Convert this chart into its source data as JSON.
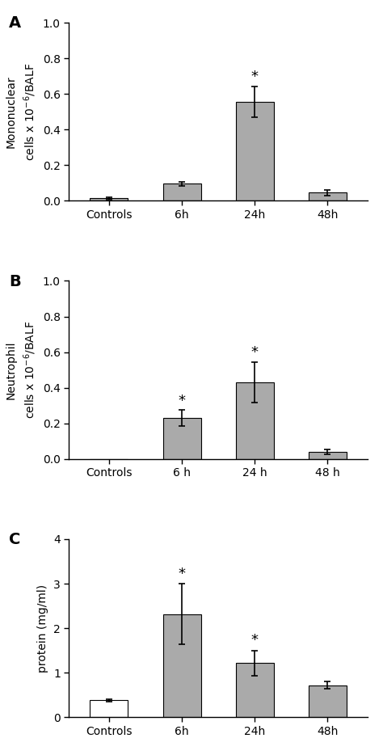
{
  "panels": [
    {
      "label": "A",
      "ylabel_line1": "Mononuclear",
      "ylabel_line2": "cells x 10$^{-6}$/BALF",
      "categories": [
        "Controls",
        "6h",
        "24h",
        "48h"
      ],
      "values": [
        0.013,
        0.095,
        0.555,
        0.045
      ],
      "errors": [
        0.005,
        0.012,
        0.085,
        0.015
      ],
      "bar_colors": [
        "#aaaaaa",
        "#aaaaaa",
        "#aaaaaa",
        "#aaaaaa"
      ],
      "bar_edgecolors": [
        "#000000",
        "#000000",
        "#000000",
        "#000000"
      ],
      "white_bars": [
        false,
        false,
        false,
        false
      ],
      "ylim": [
        0,
        1.0
      ],
      "yticks": [
        0.0,
        0.2,
        0.4,
        0.6,
        0.8,
        1.0
      ],
      "ytick_labels": [
        "0.0",
        "0.2",
        "0.4",
        "0.6",
        "0.8",
        "1.0"
      ],
      "significance": [
        false,
        false,
        true,
        false
      ],
      "sig_x": [
        null,
        null,
        2,
        null
      ],
      "sig_y": [
        null,
        null,
        0.655,
        null
      ]
    },
    {
      "label": "B",
      "ylabel_line1": "Neutrophil",
      "ylabel_line2": "cells x 10$^{-6}$/BALF",
      "categories": [
        "Controls",
        "6 h",
        "24 h",
        "48 h"
      ],
      "values": [
        0.0,
        0.23,
        0.43,
        0.04
      ],
      "errors": [
        0.0,
        0.045,
        0.115,
        0.012
      ],
      "bar_colors": [
        "#aaaaaa",
        "#aaaaaa",
        "#aaaaaa",
        "#aaaaaa"
      ],
      "bar_edgecolors": [
        "#000000",
        "#000000",
        "#000000",
        "#000000"
      ],
      "white_bars": [
        false,
        false,
        false,
        false
      ],
      "ylim": [
        0,
        1.0
      ],
      "yticks": [
        0.0,
        0.2,
        0.4,
        0.6,
        0.8,
        1.0
      ],
      "ytick_labels": [
        "0.0",
        "0.2",
        "0.4",
        "0.6",
        "0.8",
        "1.0"
      ],
      "significance": [
        false,
        true,
        true,
        false
      ],
      "sig_x": [
        null,
        1,
        2,
        null
      ],
      "sig_y": [
        null,
        0.285,
        0.558,
        null
      ]
    },
    {
      "label": "C",
      "ylabel_line1": "protein (mg/ml)",
      "ylabel_line2": null,
      "categories": [
        "Controls",
        "6h",
        "24h",
        "48h"
      ],
      "values": [
        0.38,
        2.32,
        1.22,
        0.72
      ],
      "errors": [
        0.03,
        0.68,
        0.28,
        0.08
      ],
      "bar_colors": [
        "#ffffff",
        "#aaaaaa",
        "#aaaaaa",
        "#aaaaaa"
      ],
      "bar_edgecolors": [
        "#000000",
        "#000000",
        "#000000",
        "#000000"
      ],
      "white_bars": [
        true,
        false,
        false,
        false
      ],
      "ylim": [
        0,
        4.0
      ],
      "yticks": [
        0,
        1,
        2,
        3,
        4
      ],
      "ytick_labels": [
        "0",
        "1",
        "2",
        "3",
        "4"
      ],
      "significance": [
        false,
        true,
        true,
        false
      ],
      "sig_x": [
        null,
        1,
        2,
        null
      ],
      "sig_y": [
        null,
        3.06,
        1.56,
        null
      ]
    }
  ],
  "bar_width": 0.52,
  "fig_bg": "#ffffff",
  "label_font_size": 14,
  "tick_font_size": 10,
  "ylabel_font_size": 10,
  "error_cap_size": 3,
  "error_lw": 1.2,
  "sig_font_size": 13
}
